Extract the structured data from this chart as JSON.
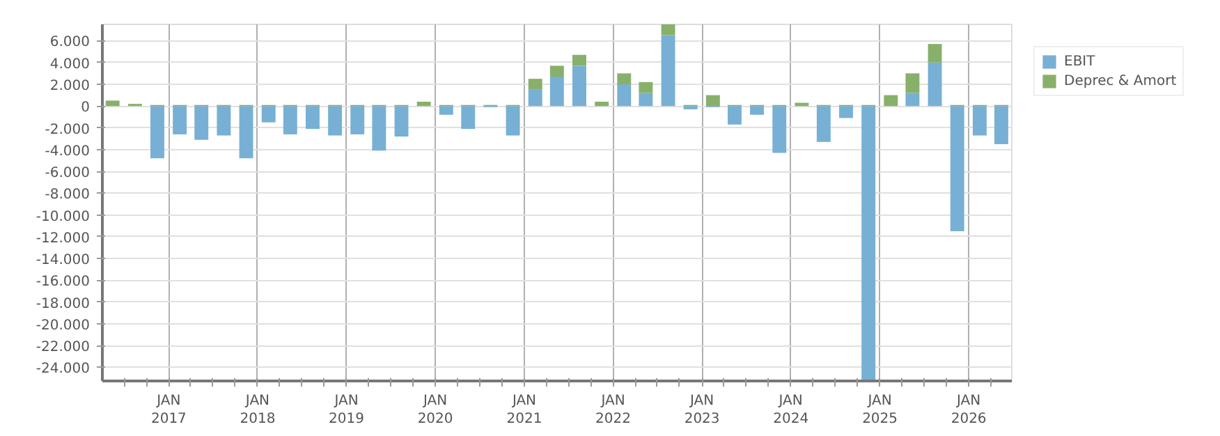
{
  "chart_data": {
    "type": "bar",
    "stacked": true,
    "x": [
      "2016-05-15",
      "2016-08-15",
      "2016-11-15",
      "2017-02-15",
      "2017-05-15",
      "2017-08-15",
      "2017-11-15",
      "2018-02-15",
      "2018-05-15",
      "2018-08-15",
      "2018-11-15",
      "2019-02-15",
      "2019-05-15",
      "2019-08-15",
      "2019-11-15",
      "2020-02-15",
      "2020-05-15",
      "2020-08-15",
      "2020-11-15",
      "2021-02-15",
      "2021-05-15",
      "2021-08-15",
      "2021-11-15",
      "2022-02-15",
      "2022-05-15",
      "2022-08-15",
      "2022-11-15",
      "2023-02-15",
      "2023-05-15",
      "2023-08-15",
      "2023-11-15",
      "2024-02-15",
      "2024-05-15",
      "2024-08-15",
      "2024-11-15",
      "2025-02-15",
      "2025-05-15",
      "2025-08-15",
      "2025-11-15",
      "2026-02-15",
      "2026-05-15"
    ],
    "series": [
      {
        "name": "EBIT",
        "color": "#77b0d4",
        "values": [
          0,
          0,
          -4800,
          -2600,
          -3100,
          -2700,
          -4800,
          -1500,
          -2600,
          -2100,
          -2700,
          -2600,
          -4100,
          -2800,
          0,
          -800,
          -2100,
          -100,
          -2700,
          1500,
          2700,
          3700,
          0,
          2000,
          1200,
          6500,
          -300,
          -100,
          -1700,
          -800,
          -4300,
          0,
          -3300,
          -1100,
          -25200,
          0,
          1200,
          4000,
          -11500,
          -2700,
          -3500
        ]
      },
      {
        "name": "Deprec & Amort",
        "color": "#88b06a",
        "values": [
          500,
          200,
          100,
          100,
          100,
          100,
          100,
          100,
          100,
          100,
          100,
          100,
          100,
          100,
          400,
          100,
          100,
          100,
          100,
          1000,
          1000,
          1000,
          400,
          1000,
          1000,
          1000,
          100,
          1000,
          100,
          100,
          100,
          300,
          100,
          100,
          100,
          1000,
          1800,
          1700,
          100,
          100,
          100
        ]
      }
    ],
    "xlim": [
      "2016-04-03",
      "2026-06-27"
    ],
    "xticks": [
      {
        "value": "2016-07-01",
        "label": null
      },
      {
        "value": "2016-10-01",
        "label": null
      },
      {
        "value": "2017-01-01",
        "label": "JAN\n2017"
      },
      {
        "value": "2017-04-01",
        "label": null
      },
      {
        "value": "2017-07-01",
        "label": null
      },
      {
        "value": "2017-10-01",
        "label": null
      },
      {
        "value": "2018-01-01",
        "label": "JAN\n2018"
      },
      {
        "value": "2018-04-01",
        "label": null
      },
      {
        "value": "2018-07-01",
        "label": null
      },
      {
        "value": "2018-10-01",
        "label": null
      },
      {
        "value": "2019-01-01",
        "label": "JAN\n2019"
      },
      {
        "value": "2019-04-01",
        "label": null
      },
      {
        "value": "2019-07-01",
        "label": null
      },
      {
        "value": "2019-10-01",
        "label": null
      },
      {
        "value": "2020-01-01",
        "label": "JAN\n2020"
      },
      {
        "value": "2020-04-01",
        "label": null
      },
      {
        "value": "2020-07-01",
        "label": null
      },
      {
        "value": "2020-10-01",
        "label": null
      },
      {
        "value": "2021-01-01",
        "label": "JAN\n2021"
      },
      {
        "value": "2021-04-01",
        "label": null
      },
      {
        "value": "2021-07-01",
        "label": null
      },
      {
        "value": "2021-10-01",
        "label": null
      },
      {
        "value": "2022-01-01",
        "label": "JAN\n2022"
      },
      {
        "value": "2022-04-01",
        "label": null
      },
      {
        "value": "2022-07-01",
        "label": null
      },
      {
        "value": "2022-10-01",
        "label": null
      },
      {
        "value": "2023-01-01",
        "label": "JAN\n2023"
      },
      {
        "value": "2023-04-01",
        "label": null
      },
      {
        "value": "2023-07-01",
        "label": null
      },
      {
        "value": "2023-10-01",
        "label": null
      },
      {
        "value": "2024-01-01",
        "label": "JAN\n2024"
      },
      {
        "value": "2024-04-01",
        "label": null
      },
      {
        "value": "2024-07-01",
        "label": null
      },
      {
        "value": "2024-10-01",
        "label": null
      },
      {
        "value": "2025-01-01",
        "label": "JAN\n2025"
      },
      {
        "value": "2025-04-01",
        "label": null
      },
      {
        "value": "2025-07-01",
        "label": null
      },
      {
        "value": "2025-10-01",
        "label": null
      },
      {
        "value": "2026-01-01",
        "label": "JAN\n2026"
      },
      {
        "value": "2026-04-01",
        "label": null
      }
    ],
    "ylim": [
      -25250,
      7500
    ],
    "yticks": [
      {
        "value": 6000,
        "label": "6.000"
      },
      {
        "value": 4000,
        "label": "4.000"
      },
      {
        "value": 2000,
        "label": "2.000"
      },
      0,
      {
        "value": -2000,
        "label": "-2.000"
      },
      {
        "value": -4000,
        "label": "-4.000"
      },
      {
        "value": -6000,
        "label": "-6.000"
      },
      {
        "value": -8000,
        "label": "-8.000"
      },
      {
        "value": -10000,
        "label": "-10.000"
      },
      {
        "value": -12000,
        "label": "-12.000"
      },
      {
        "value": -14000,
        "label": "-14.000"
      },
      {
        "value": -16000,
        "label": "-16.000"
      },
      {
        "value": -18000,
        "label": "-18.000"
      },
      {
        "value": -20000,
        "label": "-20.000"
      },
      {
        "value": -22000,
        "label": "-22.000"
      },
      {
        "value": -24000,
        "label": "-24.000"
      }
    ],
    "grid": true,
    "legend": "top right"
  }
}
